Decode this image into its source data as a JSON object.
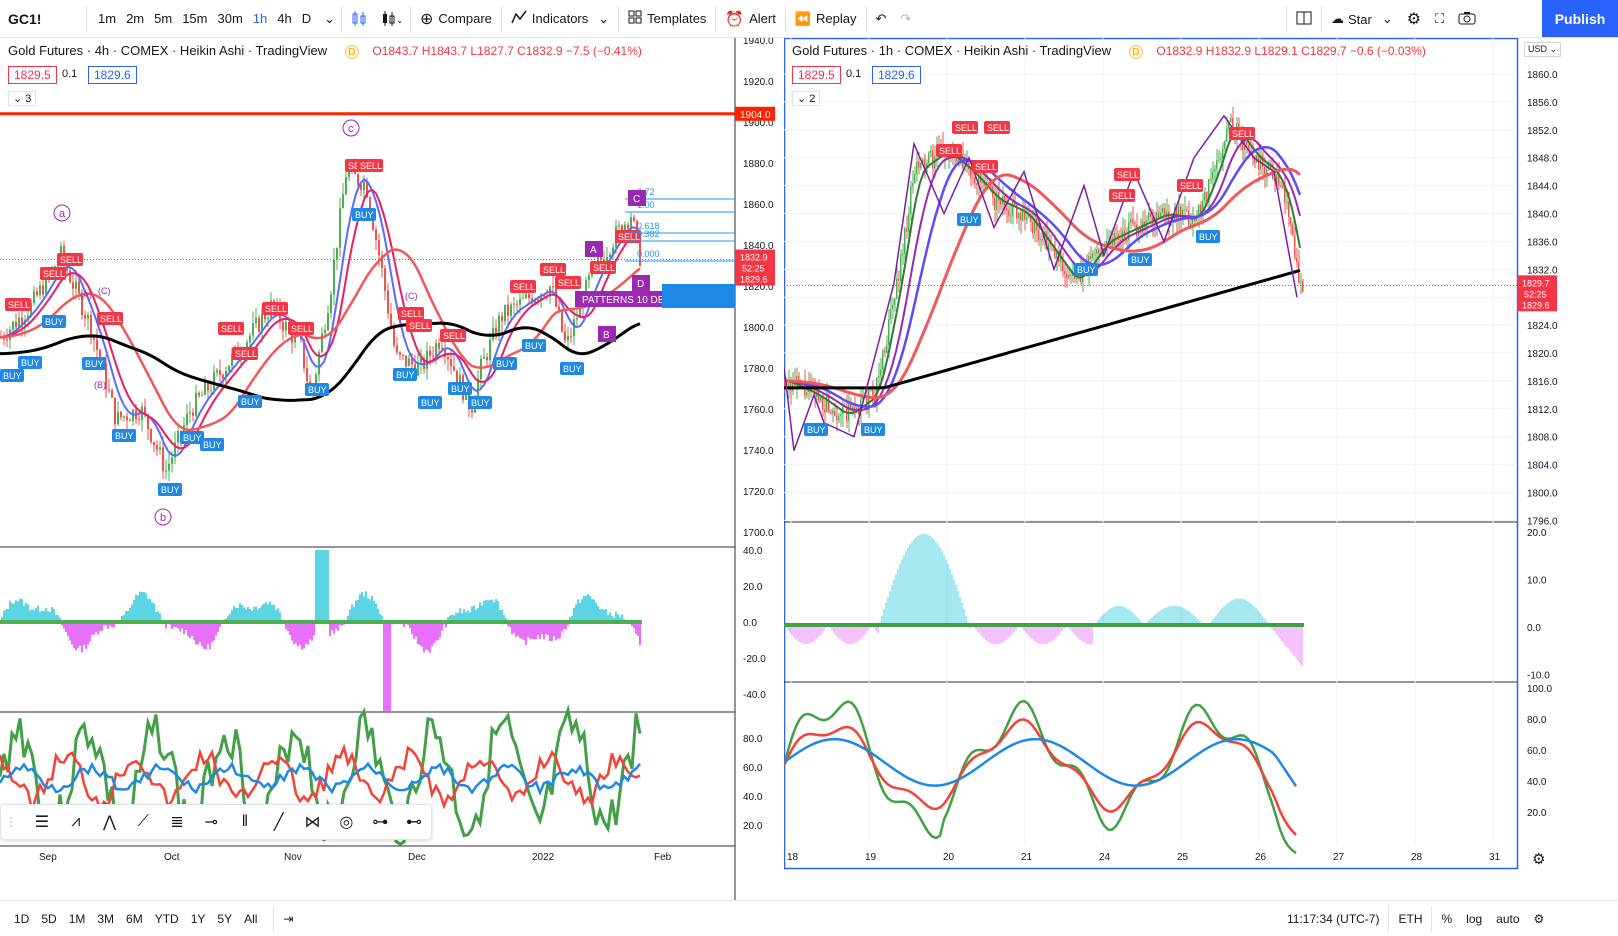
{
  "toolbar": {
    "symbol": "GC1!",
    "timeframes": [
      "1m",
      "2m",
      "5m",
      "15m",
      "30m",
      "1h",
      "4h",
      "D"
    ],
    "active_timeframe": "1h",
    "compare_label": "Compare",
    "indicators_label": "Indicators",
    "templates_label": "Templates",
    "alert_label": "Alert",
    "replay_label": "Replay",
    "cloud_label": "Star",
    "publish_label": "Publish"
  },
  "left_chart": {
    "title": "Gold Futures · 4h · COMEX · Heikin Ashi · TradingView",
    "badge": "D",
    "ohlc": "O1843.7 H1843.7 L1827.7 C1832.9 −7.5 (−0.41%)",
    "bid": "1829.5",
    "spread": "0.1",
    "ask": "1829.6",
    "collapsed_count": "3",
    "price_ticks": [
      "1940.0",
      "1920.0",
      "1900.0",
      "1880.0",
      "1860.0",
      "1840.0",
      "1820.0",
      "1800.0",
      "1780.0",
      "1760.0",
      "1740.0",
      "1720.0",
      "1700.0"
    ],
    "resistance_label": "1904.0",
    "last_price": "1832.9",
    "countdown": "52:25",
    "last_price2": "1829.6",
    "osc_ticks": [
      "40.0",
      "20.0",
      "0.0",
      "-20.0",
      "-40.0"
    ],
    "rsi_ticks": [
      "80.0",
      "60.0",
      "40.0",
      "20.0"
    ],
    "time_labels": [
      "Sep",
      "Oct",
      "Nov",
      "Dec",
      "2022",
      "Feb"
    ],
    "wave_labels": [
      "a",
      "b",
      "c",
      "(A)",
      "(B)",
      "(C)"
    ],
    "pattern_text": "PATTERNS 10 DETECTED",
    "fib_levels": [
      "2.72",
      "1.00",
      "0.618",
      "0.382",
      "0.000"
    ]
  },
  "right_chart": {
    "title": "Gold Futures · 1h · COMEX · Heikin Ashi · TradingView",
    "badge": "D",
    "ohlc": "O1832.9 H1832.9 L1829.1 C1829.7 −0.6 (−0.03%)",
    "bid": "1829.5",
    "spread": "0.1",
    "ask": "1829.6",
    "collapsed_count": "2",
    "currency": "USD",
    "price_ticks": [
      "1860.0",
      "1856.0",
      "1852.0",
      "1848.0",
      "1844.0",
      "1840.0",
      "1836.0",
      "1832.0",
      "1828.0",
      "1824.0",
      "1820.0",
      "1816.0",
      "1812.0",
      "1808.0",
      "1804.0",
      "1800.0",
      "1796.0"
    ],
    "last_price": "1829.7",
    "countdown": "52:25",
    "last_price2": "1829.6",
    "osc_ticks": [
      "20.0",
      "10.0",
      "0.0",
      "-10.0"
    ],
    "rsi_ticks": [
      "100.0",
      "80.0",
      "60.0",
      "40.0",
      "20.0"
    ],
    "time_labels": [
      "18",
      "19",
      "20",
      "21",
      "24",
      "25",
      "26",
      "27",
      "28",
      "31"
    ]
  },
  "bottom_bar": {
    "ranges": [
      "1D",
      "5D",
      "1M",
      "3M",
      "6M",
      "YTD",
      "1Y",
      "5Y",
      "All"
    ],
    "clock": "11:17:34 (UTC-7)",
    "session": "ETH",
    "percent": "%",
    "log": "log",
    "auto": "auto"
  },
  "colors": {
    "accent": "#2962ff",
    "sell": "#f23645",
    "buy": "#1e88e5"
  }
}
